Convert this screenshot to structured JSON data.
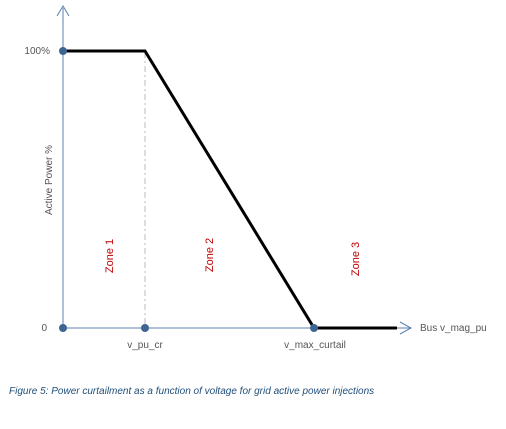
{
  "chart_data": {
    "type": "line",
    "title": "",
    "xlabel": "Bus v_mag_pu",
    "ylabel": "Active Power %",
    "y_tick_labels": [
      "100%",
      "0"
    ],
    "x_markers": [
      "v_pu_cr",
      "v_max_curtail"
    ],
    "series": [
      {
        "points": [
          {
            "x": "0",
            "y": 100
          },
          {
            "x": "v_pu_cr",
            "y": 100
          },
          {
            "x": "v_max_curtail",
            "y": 0
          },
          {
            "x": "end",
            "y": 0
          }
        ]
      }
    ],
    "zones": [
      "Zone 1",
      "Zone 2",
      "Zone 3"
    ],
    "colors": {
      "line": "#000000",
      "axis": "#5b80b2",
      "marker": "#3e6494",
      "zone_text": "#c00000",
      "caption": "#1f4e79"
    },
    "grid": false
  },
  "caption": "Figure 5: Power curtailment as a function of voltage for grid active power injections"
}
